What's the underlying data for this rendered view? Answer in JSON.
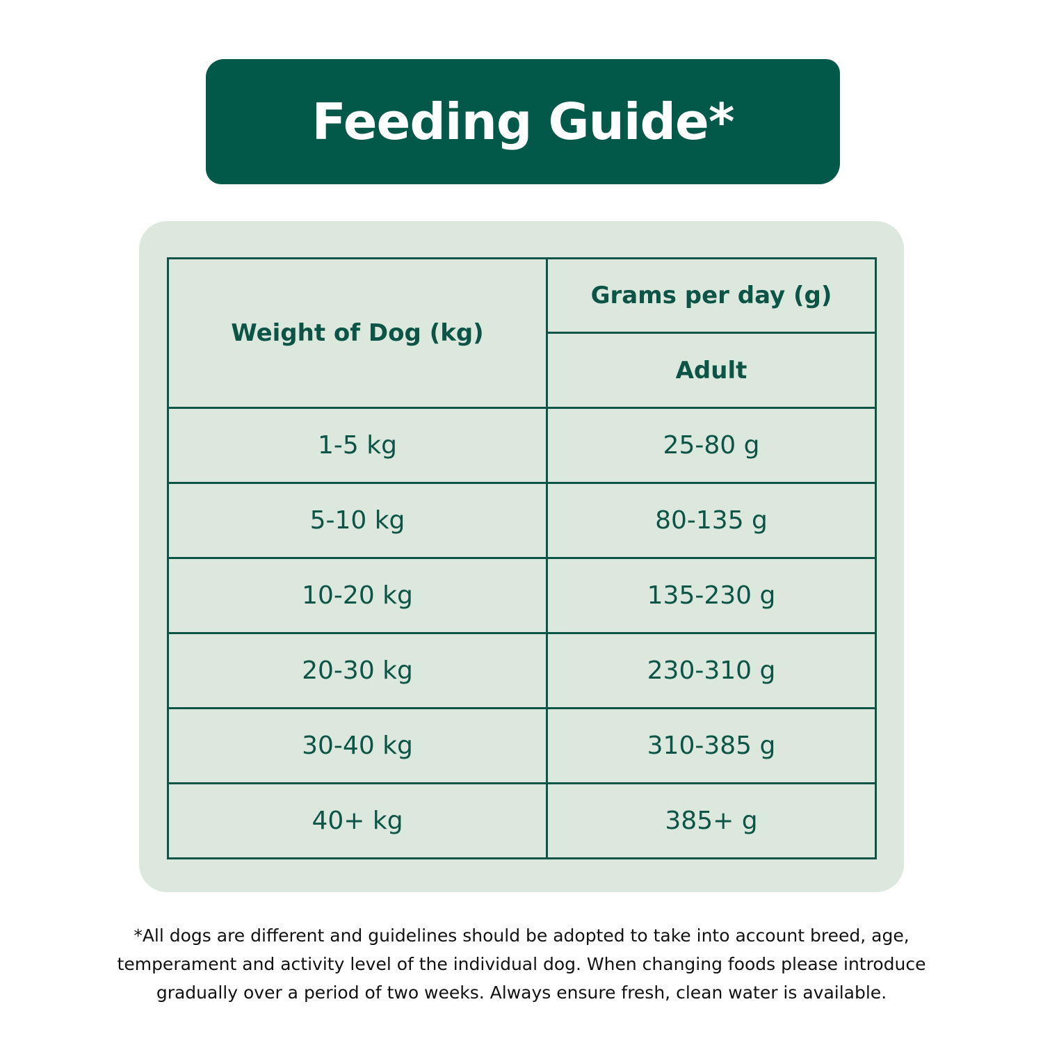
{
  "title": "Feeding Guide*",
  "table": {
    "col1_header": "Weight of Dog (kg)",
    "col2_header": "Grams per day (g)",
    "col2_subheader": "Adult",
    "rows": [
      {
        "weight": "1-5 kg",
        "grams": "25-80 g"
      },
      {
        "weight": "5-10 kg",
        "grams": "80-135 g"
      },
      {
        "weight": "10-20 kg",
        "grams": "135-230 g"
      },
      {
        "weight": "20-30 kg",
        "grams": "230-310 g"
      },
      {
        "weight": "30-40 kg",
        "grams": "310-385 g"
      },
      {
        "weight": "40+ kg",
        "grams": "385+ g"
      }
    ]
  },
  "footnote": {
    "line1": "*All dogs are different and guidelines should be adopted to take into account breed, age,",
    "line2": "temperament and activity level of the individual dog. When changing foods please introduce",
    "line3": "gradually over a period of two weeks. Always ensure fresh, clean water is available."
  },
  "colors": {
    "brand_green": "#02594a",
    "panel_bg": "#dce8de"
  }
}
